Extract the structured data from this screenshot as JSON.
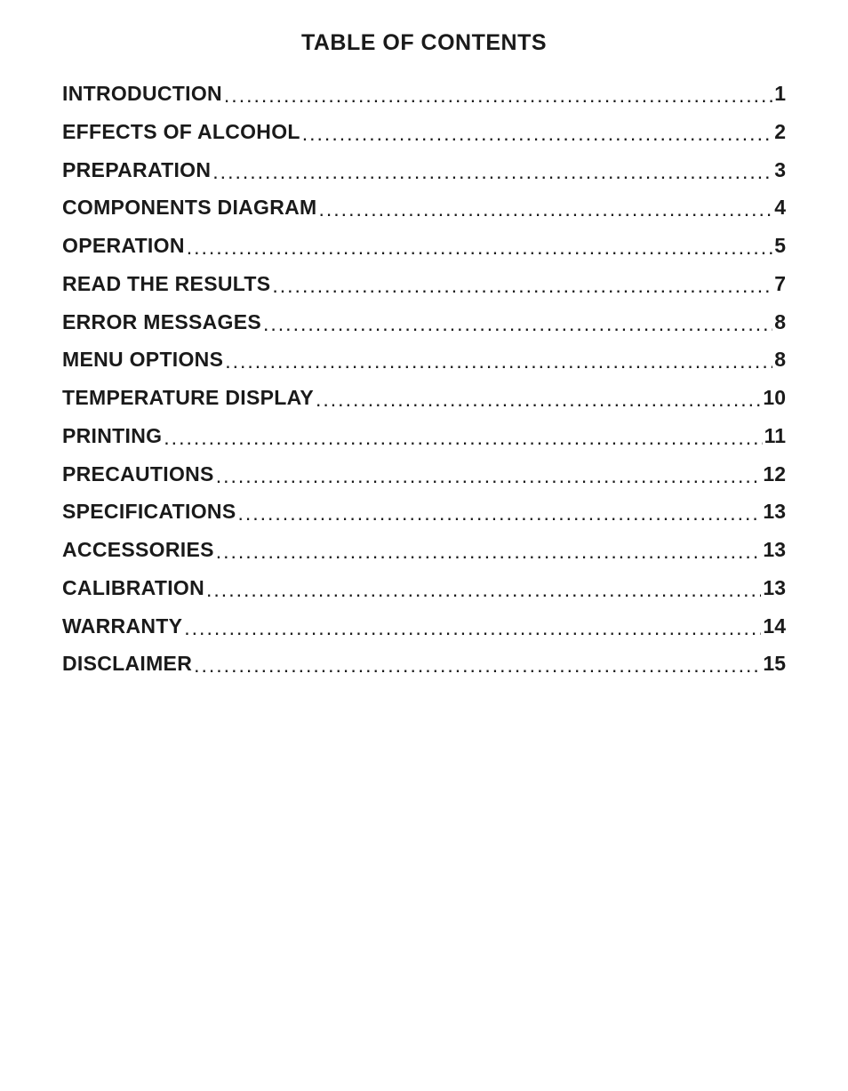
{
  "document": {
    "title": "TABLE OF CONTENTS",
    "title_fontsize_pt": 19,
    "entry_fontsize_pt": 17,
    "font_family": "Arial",
    "text_color": "#1a1a1a",
    "background_color": "#ffffff",
    "leader_char": ".",
    "entries": [
      {
        "label": "INTRODUCTION",
        "page": "1"
      },
      {
        "label": "EFFECTS OF ALCOHOL",
        "page": "2"
      },
      {
        "label": "PREPARATION",
        "page": "3"
      },
      {
        "label": "COMPONENTS DIAGRAM",
        "page": "4"
      },
      {
        "label": "OPERATION",
        "page": "5"
      },
      {
        "label": "READ THE RESULTS",
        "page": "7"
      },
      {
        "label": "ERROR MESSAGES",
        "page": "8"
      },
      {
        "label": "MENU OPTIONS",
        "page": "8"
      },
      {
        "label": "TEMPERATURE DISPLAY",
        "page": "10"
      },
      {
        "label": "PRINTING",
        "page": "11"
      },
      {
        "label": "PRECAUTIONS",
        "page": "12"
      },
      {
        "label": "SPECIFICATIONS",
        "page": "13"
      },
      {
        "label": "ACCESSORIES",
        "page": "13"
      },
      {
        "label": "CALIBRATION",
        "page": "13"
      },
      {
        "label": "WARRANTY",
        "page": "14"
      },
      {
        "label": "DISCLAIMER",
        "page": "15"
      }
    ]
  }
}
